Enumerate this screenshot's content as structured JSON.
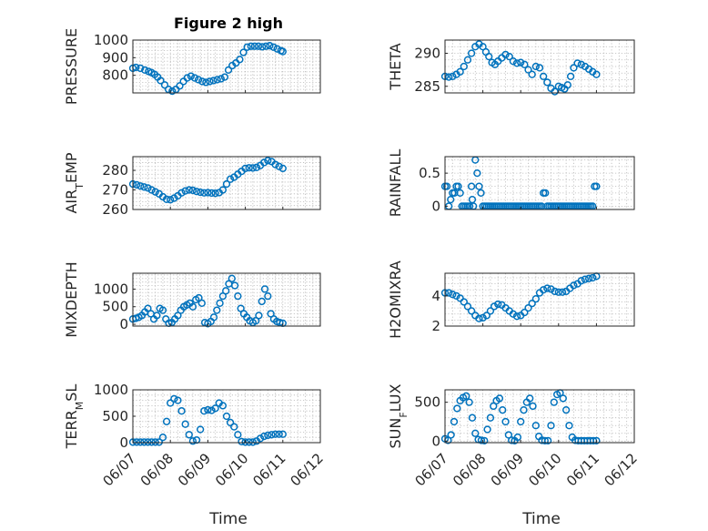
{
  "figure_title": "Figure 2 high",
  "colors": {
    "series": "#0072BD",
    "axis": "#262626",
    "grid": "#b8b8b8"
  },
  "chart_data": [
    {
      "type": "scatter",
      "ylabel": "PRESSURE",
      "title": "Figure 2 high",
      "ylim": [
        700,
        1000
      ],
      "yticks": [
        800,
        900,
        1000
      ],
      "xlim": [
        0,
        5
      ],
      "x": [
        0,
        0.08,
        0.2,
        0.32,
        0.42,
        0.5,
        0.58,
        0.66,
        0.74,
        0.85,
        0.95,
        1.05,
        1.15,
        1.25,
        1.35,
        1.45,
        1.55,
        1.65,
        1.75,
        1.85,
        1.95,
        2.05,
        2.15,
        2.25,
        2.35,
        2.45,
        2.55,
        2.65,
        2.75,
        2.85,
        2.95,
        3.05,
        3.15,
        3.25,
        3.35,
        3.45,
        3.55,
        3.65,
        3.75,
        3.85,
        3.95,
        4.0
      ],
      "y": [
        840,
        845,
        840,
        830,
        822,
        815,
        805,
        790,
        770,
        745,
        720,
        710,
        720,
        740,
        765,
        785,
        795,
        785,
        775,
        765,
        760,
        765,
        770,
        775,
        780,
        790,
        830,
        855,
        870,
        890,
        930,
        960,
        965,
        965,
        965,
        962,
        965,
        968,
        960,
        950,
        940,
        935
      ],
      "grid": true
    },
    {
      "type": "scatter",
      "ylabel": "THETA",
      "ylim": [
        284,
        292
      ],
      "yticks": [
        285,
        290
      ],
      "xlim": [
        0,
        5
      ],
      "x": [
        0,
        0.1,
        0.2,
        0.3,
        0.4,
        0.5,
        0.6,
        0.7,
        0.8,
        0.9,
        1.0,
        1.08,
        1.16,
        1.24,
        1.32,
        1.4,
        1.5,
        1.6,
        1.7,
        1.8,
        1.9,
        2.0,
        2.1,
        2.2,
        2.3,
        2.4,
        2.5,
        2.6,
        2.7,
        2.8,
        2.9,
        3.0,
        3.08,
        3.16,
        3.24,
        3.32,
        3.4,
        3.5,
        3.6,
        3.7,
        3.8,
        3.9,
        4.0
      ],
      "y": [
        286.5,
        286.4,
        286.5,
        286.8,
        287.2,
        288,
        289,
        290,
        291,
        291.4,
        291,
        290.2,
        289.5,
        288.6,
        288.3,
        288.8,
        289.3,
        289.8,
        289.5,
        288.8,
        288.5,
        288.6,
        288.3,
        287.5,
        286.8,
        288,
        287.8,
        286.5,
        285.6,
        284.7,
        284.2,
        285,
        284.8,
        284.6,
        285.2,
        286.5,
        287.8,
        288.5,
        288.3,
        288.0,
        287.6,
        287.2,
        286.8
      ],
      "grid": true
    },
    {
      "type": "scatter",
      "ylabel": "AIR_TEMP",
      "ylim": [
        260,
        287
      ],
      "yticks": [
        260,
        270,
        280
      ],
      "xlim": [
        0,
        5
      ],
      "x": [
        0,
        0.1,
        0.2,
        0.3,
        0.4,
        0.5,
        0.6,
        0.7,
        0.8,
        0.9,
        1.0,
        1.1,
        1.2,
        1.3,
        1.4,
        1.5,
        1.6,
        1.7,
        1.8,
        1.9,
        2.0,
        2.1,
        2.2,
        2.3,
        2.4,
        2.5,
        2.6,
        2.7,
        2.8,
        2.9,
        3.0,
        3.1,
        3.2,
        3.3,
        3.4,
        3.5,
        3.6,
        3.7,
        3.8,
        3.9,
        4.0
      ],
      "y": [
        273,
        272.6,
        272,
        271.5,
        271,
        270,
        269,
        268,
        266.5,
        265.2,
        265,
        265.8,
        267,
        268.5,
        269.5,
        270,
        269.8,
        269.2,
        268.8,
        268.5,
        268.6,
        268.4,
        268.3,
        268.6,
        270,
        273,
        275.5,
        276.5,
        278,
        279.5,
        281,
        281.3,
        281.2,
        281.5,
        282.5,
        284,
        285,
        284.5,
        283,
        282,
        281
      ],
      "grid": true
    },
    {
      "type": "scatter",
      "ylabel": "RAINFALL",
      "ylim": [
        -0.05,
        0.75
      ],
      "yticks": [
        0,
        0.5
      ],
      "xlim": [
        0,
        5
      ],
      "x": [
        0,
        0.05,
        0.1,
        0.15,
        0.2,
        0.25,
        0.3,
        0.35,
        0.4,
        0.45,
        0.5,
        0.55,
        0.6,
        0.65,
        0.7,
        0.72,
        0.75,
        0.8,
        0.85,
        0.9,
        0.95,
        1.0,
        1.05,
        1.1,
        1.15,
        1.2,
        1.25,
        1.3,
        1.35,
        1.4,
        1.45,
        1.5,
        1.55,
        1.6,
        1.65,
        1.7,
        1.75,
        1.8,
        1.85,
        1.9,
        1.95,
        2.0,
        2.05,
        2.1,
        2.15,
        2.2,
        2.25,
        2.3,
        2.35,
        2.4,
        2.45,
        2.5,
        2.55,
        2.6,
        2.65,
        2.7,
        2.75,
        2.8,
        2.85,
        2.9,
        2.95,
        3.0,
        3.05,
        3.1,
        3.15,
        3.2,
        3.25,
        3.3,
        3.35,
        3.4,
        3.45,
        3.5,
        3.55,
        3.6,
        3.65,
        3.7,
        3.75,
        3.8,
        3.85,
        3.9,
        3.95,
        4.0
      ],
      "y": [
        0.3,
        0.3,
        0,
        0.1,
        0.2,
        0.2,
        0.3,
        0.3,
        0.2,
        0,
        0,
        0,
        0,
        0,
        0.3,
        0.1,
        0,
        0.7,
        0.5,
        0.3,
        0.2,
        0,
        0,
        0,
        0,
        0,
        0,
        0,
        0,
        0,
        0,
        0,
        0,
        0,
        0,
        0,
        0,
        0,
        0,
        0,
        0,
        0,
        0,
        0,
        0,
        0,
        0,
        0,
        0,
        0,
        0,
        0,
        0,
        0.2,
        0.2,
        0,
        0,
        0,
        0,
        0,
        0,
        0,
        0,
        0,
        0,
        0,
        0,
        0,
        0,
        0,
        0,
        0,
        0,
        0,
        0,
        0,
        0,
        0,
        0,
        0,
        0.3,
        0.3
      ],
      "grid": true
    },
    {
      "type": "scatter",
      "ylabel": "MIXDEPTH",
      "ylim": [
        -50,
        1450
      ],
      "yticks": [
        0,
        500,
        1000
      ],
      "xlim": [
        0,
        5
      ],
      "x": [
        0,
        0.08,
        0.16,
        0.24,
        0.32,
        0.4,
        0.48,
        0.56,
        0.64,
        0.72,
        0.8,
        0.88,
        0.96,
        1.04,
        1.12,
        1.2,
        1.28,
        1.36,
        1.44,
        1.52,
        1.6,
        1.68,
        1.76,
        1.84,
        1.92,
        2.0,
        2.08,
        2.16,
        2.24,
        2.32,
        2.4,
        2.48,
        2.56,
        2.64,
        2.72,
        2.8,
        2.88,
        2.96,
        3.04,
        3.12,
        3.2,
        3.28,
        3.36,
        3.44,
        3.52,
        3.6,
        3.68,
        3.76,
        3.84,
        3.92,
        4.0
      ],
      "y": [
        150,
        170,
        200,
        250,
        350,
        450,
        300,
        150,
        250,
        450,
        400,
        150,
        30,
        50,
        150,
        250,
        400,
        500,
        550,
        600,
        500,
        700,
        750,
        600,
        50,
        20,
        80,
        200,
        400,
        600,
        800,
        950,
        1150,
        1300,
        1100,
        800,
        450,
        300,
        200,
        100,
        50,
        100,
        250,
        650,
        1000,
        800,
        300,
        150,
        80,
        50,
        30
      ],
      "grid": true
    },
    {
      "type": "scatter",
      "ylabel": "H2OMIXRA",
      "ylim": [
        2,
        5.5
      ],
      "yticks": [
        2,
        4
      ],
      "xlim": [
        0,
        5
      ],
      "x": [
        0,
        0.1,
        0.2,
        0.3,
        0.4,
        0.5,
        0.6,
        0.7,
        0.8,
        0.9,
        1.0,
        1.1,
        1.2,
        1.3,
        1.4,
        1.5,
        1.6,
        1.7,
        1.8,
        1.9,
        2.0,
        2.1,
        2.2,
        2.3,
        2.4,
        2.5,
        2.6,
        2.7,
        2.8,
        2.9,
        3.0,
        3.1,
        3.2,
        3.3,
        3.4,
        3.5,
        3.6,
        3.7,
        3.8,
        3.9,
        4.0
      ],
      "y": [
        4.2,
        4.2,
        4.1,
        4.0,
        3.85,
        3.6,
        3.3,
        3.0,
        2.7,
        2.5,
        2.55,
        2.7,
        3.0,
        3.3,
        3.45,
        3.4,
        3.2,
        3.0,
        2.8,
        2.65,
        2.7,
        2.9,
        3.2,
        3.5,
        3.8,
        4.2,
        4.4,
        4.5,
        4.45,
        4.3,
        4.25,
        4.25,
        4.3,
        4.5,
        4.7,
        4.8,
        5.0,
        5.1,
        5.15,
        5.2,
        5.3
      ],
      "grid": true
    },
    {
      "type": "scatter",
      "ylabel": "TERR_MSL",
      "ylim": [
        0,
        1000
      ],
      "yticks": [
        0,
        500,
        1000
      ],
      "xlim": [
        0,
        5
      ],
      "x": [
        0,
        0.1,
        0.2,
        0.3,
        0.4,
        0.5,
        0.6,
        0.7,
        0.8,
        0.9,
        1.0,
        1.1,
        1.2,
        1.3,
        1.4,
        1.5,
        1.6,
        1.7,
        1.8,
        1.9,
        2.0,
        2.1,
        2.2,
        2.3,
        2.4,
        2.5,
        2.6,
        2.7,
        2.8,
        2.9,
        3.0,
        3.1,
        3.2,
        3.3,
        3.4,
        3.5,
        3.6,
        3.7,
        3.8,
        3.9,
        4.0
      ],
      "y": [
        10,
        10,
        10,
        10,
        10,
        10,
        10,
        10,
        100,
        400,
        750,
        830,
        800,
        600,
        350,
        150,
        30,
        50,
        250,
        600,
        620,
        610,
        650,
        750,
        700,
        500,
        380,
        300,
        150,
        20,
        10,
        10,
        10,
        30,
        80,
        120,
        140,
        150,
        160,
        160,
        160
      ],
      "grid": true
    },
    {
      "type": "scatter",
      "ylabel": "SUN_FLUX",
      "ylim": [
        -20,
        660
      ],
      "yticks": [
        0,
        500
      ],
      "xlim": [
        0,
        5
      ],
      "x": [
        0,
        0.08,
        0.16,
        0.24,
        0.32,
        0.4,
        0.48,
        0.56,
        0.64,
        0.72,
        0.8,
        0.88,
        0.96,
        1.04,
        1.12,
        1.2,
        1.28,
        1.36,
        1.44,
        1.52,
        1.6,
        1.68,
        1.76,
        1.84,
        1.92,
        2.0,
        2.08,
        2.16,
        2.24,
        2.32,
        2.4,
        2.48,
        2.56,
        2.64,
        2.72,
        2.8,
        2.88,
        2.96,
        3.04,
        3.12,
        3.2,
        3.28,
        3.36,
        3.44,
        3.52,
        3.6,
        3.68,
        3.76,
        3.84,
        3.92,
        4.0
      ],
      "y": [
        30,
        10,
        80,
        250,
        420,
        520,
        560,
        580,
        500,
        300,
        100,
        20,
        10,
        5,
        150,
        300,
        450,
        520,
        550,
        400,
        250,
        80,
        10,
        5,
        50,
        250,
        400,
        500,
        550,
        450,
        200,
        60,
        10,
        5,
        5,
        200,
        500,
        600,
        620,
        550,
        400,
        200,
        50,
        10,
        5,
        5,
        5,
        5,
        5,
        5,
        5
      ],
      "grid": true
    }
  ],
  "x_tick_labels": [
    "06/07",
    "06/08",
    "06/09",
    "06/10",
    "06/11",
    "06/12"
  ],
  "x_axis_label": "Time"
}
